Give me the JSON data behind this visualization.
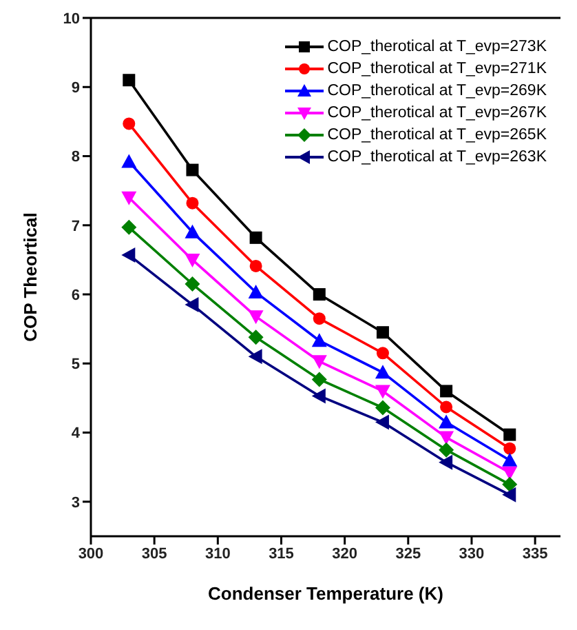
{
  "chart_data": {
    "type": "line",
    "xlabel": "Condenser Temperature (K)",
    "ylabel": "COP Theortical",
    "x": [
      303,
      308,
      313,
      318,
      323,
      328,
      333
    ],
    "xlim": [
      300,
      337
    ],
    "xticks": [
      300,
      305,
      310,
      315,
      320,
      325,
      330,
      335
    ],
    "ylim": [
      2.5,
      10
    ],
    "yticks": [
      3,
      4,
      5,
      6,
      7,
      8,
      9,
      10
    ],
    "grid": false,
    "legend": "top right",
    "line_style": "solid",
    "series": [
      {
        "name": "COP_therotical at T_evp=273K",
        "color": "#000000",
        "marker": "square",
        "values": [
          9.1,
          7.8,
          6.82,
          6.0,
          5.45,
          4.6,
          3.97
        ]
      },
      {
        "name": "COP_therotical at T_evp=271K",
        "color": "#ff0000",
        "marker": "circle",
        "values": [
          8.47,
          7.32,
          6.41,
          5.65,
          5.15,
          4.37,
          3.77
        ]
      },
      {
        "name": "COP_therotical at T_evp=269K",
        "color": "#0000ff",
        "marker": "triangle",
        "values": [
          7.92,
          6.9,
          6.03,
          5.33,
          4.87,
          4.15,
          3.6
        ]
      },
      {
        "name": "COP_therotical at T_evp=267K",
        "color": "#ff00ff",
        "marker": "triangle-down",
        "values": [
          7.4,
          6.5,
          5.68,
          5.03,
          4.6,
          3.93,
          3.42
        ]
      },
      {
        "name": "COP_therotical at T_evp=265K",
        "color": "#008000",
        "marker": "diamond",
        "values": [
          6.97,
          6.15,
          5.38,
          4.77,
          4.36,
          3.75,
          3.25
        ]
      },
      {
        "name": "COP_therotical at T_evp=263K",
        "color": "#000080",
        "marker": "triangle-left",
        "values": [
          6.57,
          5.85,
          5.1,
          4.53,
          4.15,
          3.57,
          3.1
        ]
      }
    ]
  }
}
